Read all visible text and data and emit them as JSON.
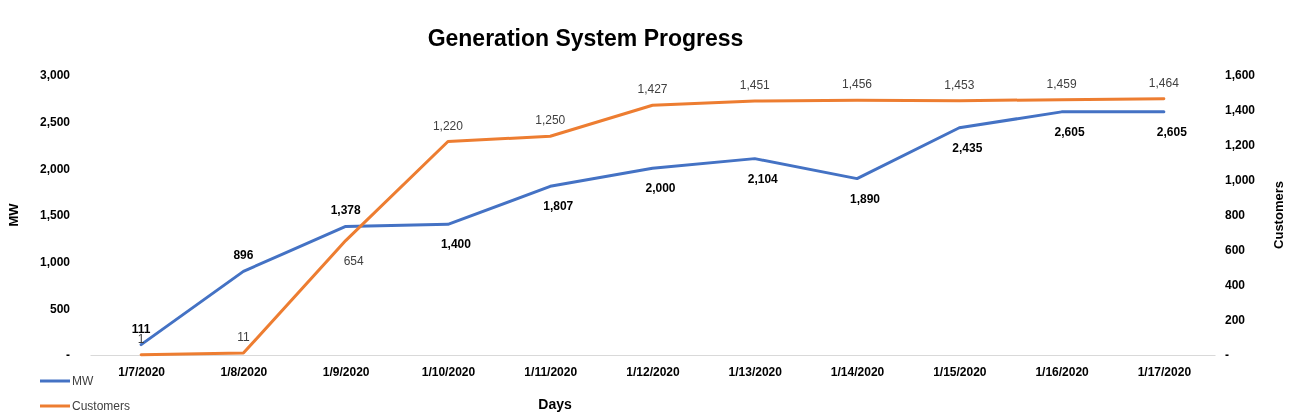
{
  "chart_data": {
    "type": "line",
    "title": "Generation System Progress",
    "xlabel": "Days",
    "ylabel": "MW",
    "y2label": "Customers",
    "categories": [
      "1/7/2020",
      "1/8/2020",
      "1/9/2020",
      "1/10/2020",
      "1/11/2020",
      "1/12/2020",
      "1/13/2020",
      "1/14/2020",
      "1/15/2020",
      "1/16/2020",
      "1/17/2020"
    ],
    "series": [
      {
        "name": "MW",
        "color": "#4472c4",
        "values": [
          111,
          896,
          1378,
          1400,
          1807,
          2000,
          2104,
          1890,
          2435,
          2605,
          2605
        ],
        "value_labels": [
          "111",
          "896",
          "1,378",
          "1,400",
          "1,807",
          "2,000",
          "2,104",
          "1,890",
          "2,435",
          "2,605",
          "2,605"
        ]
      },
      {
        "name": "Customers",
        "color": "#ed7d31",
        "axis": "y2",
        "values": [
          1,
          11,
          654,
          1220,
          1250,
          1427,
          1451,
          1456,
          1453,
          1459,
          1464
        ],
        "value_labels": [
          "1",
          "11",
          "654",
          "1,220",
          "1,250",
          "1,427",
          "1,451",
          "1,456",
          "1,453",
          "1,459",
          "1,464"
        ]
      }
    ],
    "ylim": [
      0,
      3000
    ],
    "yticks": [
      {
        "value": 0,
        "label": "-"
      },
      {
        "value": 500,
        "label": "500"
      },
      {
        "value": 1000,
        "label": "1,000"
      },
      {
        "value": 1500,
        "label": "1,500"
      },
      {
        "value": 2000,
        "label": "2,000"
      },
      {
        "value": 2500,
        "label": "2,500"
      },
      {
        "value": 3000,
        "label": "3,000"
      }
    ],
    "y2lim": [
      0,
      1600
    ],
    "y2ticks": [
      {
        "value": 0,
        "label": "-"
      },
      {
        "value": 200,
        "label": "200"
      },
      {
        "value": 400,
        "label": "400"
      },
      {
        "value": 600,
        "label": "600"
      },
      {
        "value": 800,
        "label": "800"
      },
      {
        "value": 1000,
        "label": "1,000"
      },
      {
        "value": 1200,
        "label": "1,200"
      },
      {
        "value": 1400,
        "label": "1,400"
      },
      {
        "value": 1600,
        "label": "1,600"
      }
    ],
    "legend": "bottom left",
    "grid": false,
    "marker": "none",
    "line_style": "solid"
  }
}
